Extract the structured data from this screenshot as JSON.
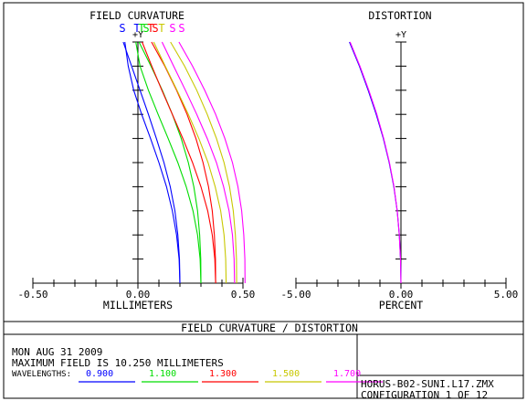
{
  "page": {
    "banner": "FIELD CURVATURE / DISTORTION",
    "date": "MON AUG 31 2009",
    "max_field": "MAXIMUM FIELD IS 10.250 MILLIMETERS",
    "wavelengths_label": "WAVELENGTHS:",
    "file_name": "HORUS-B02-SUNI.L17.ZMX",
    "configuration": "CONFIGURATION 1 OF 12"
  },
  "wavelengths": [
    {
      "value": "0.900",
      "color": "#0000ff"
    },
    {
      "value": "1.100",
      "color": "#00dd00"
    },
    {
      "value": "1.300",
      "color": "#ff0000"
    },
    {
      "value": "1.500",
      "color": "#c8c800"
    },
    {
      "value": "1.700",
      "color": "#ff00ff"
    }
  ],
  "chart_data": [
    {
      "type": "line",
      "title": "FIELD CURVATURE",
      "xlabel": "MILLIMETERS",
      "ylabel": "+Y",
      "xlim": [
        -0.5,
        0.5
      ],
      "ylim": [
        0,
        1
      ],
      "x_ticks": [
        "-0.50",
        "0.00",
        "0.50"
      ],
      "grid": false,
      "legend": {
        "placement": "top",
        "markers": [
          "S",
          "T",
          "T",
          "S",
          "T",
          "S",
          "T",
          "S",
          "S"
        ]
      },
      "y": [
        0,
        0.1,
        0.2,
        0.3,
        0.4,
        0.5,
        0.6,
        0.7,
        0.8,
        0.9,
        1.0
      ],
      "series": [
        {
          "color": "#0000ff",
          "curve": "S",
          "x": [
            0.2,
            0.198,
            0.19,
            0.176,
            0.154,
            0.124,
            0.088,
            0.05,
            0.01,
            -0.03,
            -0.07
          ]
        },
        {
          "color": "#0000ff",
          "curve": "T",
          "x": [
            0.2,
            0.196,
            0.184,
            0.164,
            0.136,
            0.1,
            0.06,
            0.018,
            -0.02,
            -0.046,
            -0.062
          ]
        },
        {
          "color": "#00dd00",
          "curve": "T",
          "x": [
            0.3,
            0.296,
            0.284,
            0.262,
            0.23,
            0.19,
            0.144,
            0.096,
            0.05,
            0.01,
            -0.01
          ]
        },
        {
          "color": "#00dd00",
          "curve": "S",
          "x": [
            0.3,
            0.299,
            0.294,
            0.284,
            0.266,
            0.24,
            0.206,
            0.164,
            0.116,
            0.062,
            0.005
          ]
        },
        {
          "color": "#ff0000",
          "curve": "T",
          "x": [
            0.37,
            0.366,
            0.354,
            0.332,
            0.3,
            0.26,
            0.214,
            0.164,
            0.114,
            0.066,
            0.02
          ]
        },
        {
          "color": "#ff0000",
          "curve": "S",
          "x": [
            0.37,
            0.369,
            0.364,
            0.354,
            0.336,
            0.31,
            0.276,
            0.234,
            0.184,
            0.128,
            0.065
          ]
        },
        {
          "color": "#c8c800",
          "curve": "T",
          "x": [
            0.42,
            0.418,
            0.41,
            0.394,
            0.368,
            0.334,
            0.29,
            0.24,
            0.186,
            0.13,
            0.075
          ]
        },
        {
          "color": "#c8c800",
          "curve": "S",
          "x": [
            0.47,
            0.469,
            0.464,
            0.454,
            0.436,
            0.41,
            0.374,
            0.33,
            0.28,
            0.222,
            0.155
          ]
        },
        {
          "color": "#ff00ff",
          "curve": "T",
          "x": [
            0.46,
            0.458,
            0.45,
            0.434,
            0.408,
            0.374,
            0.33,
            0.28,
            0.226,
            0.17,
            0.115
          ]
        },
        {
          "color": "#ff00ff",
          "curve": "S",
          "x": [
            0.51,
            0.509,
            0.504,
            0.494,
            0.476,
            0.45,
            0.414,
            0.37,
            0.318,
            0.26,
            0.195
          ]
        }
      ]
    },
    {
      "type": "line",
      "title": "DISTORTION",
      "xlabel": "PERCENT",
      "ylabel": "+Y",
      "xlim": [
        -5,
        5
      ],
      "ylim": [
        0,
        1
      ],
      "x_ticks": [
        "-5.00",
        "0.00",
        "5.00"
      ],
      "grid": false,
      "y": [
        0,
        0.1,
        0.2,
        0.3,
        0.4,
        0.5,
        0.6,
        0.7,
        0.8,
        0.9,
        1.0
      ],
      "series": [
        {
          "color": "#0000ff",
          "x": [
            0,
            -0.02,
            -0.08,
            -0.18,
            -0.34,
            -0.56,
            -0.84,
            -1.18,
            -1.56,
            -1.98,
            -2.45
          ]
        },
        {
          "color": "#ff00ff",
          "x": [
            0,
            -0.02,
            -0.08,
            -0.18,
            -0.33,
            -0.55,
            -0.82,
            -1.15,
            -1.53,
            -1.95,
            -2.42
          ]
        }
      ]
    }
  ]
}
